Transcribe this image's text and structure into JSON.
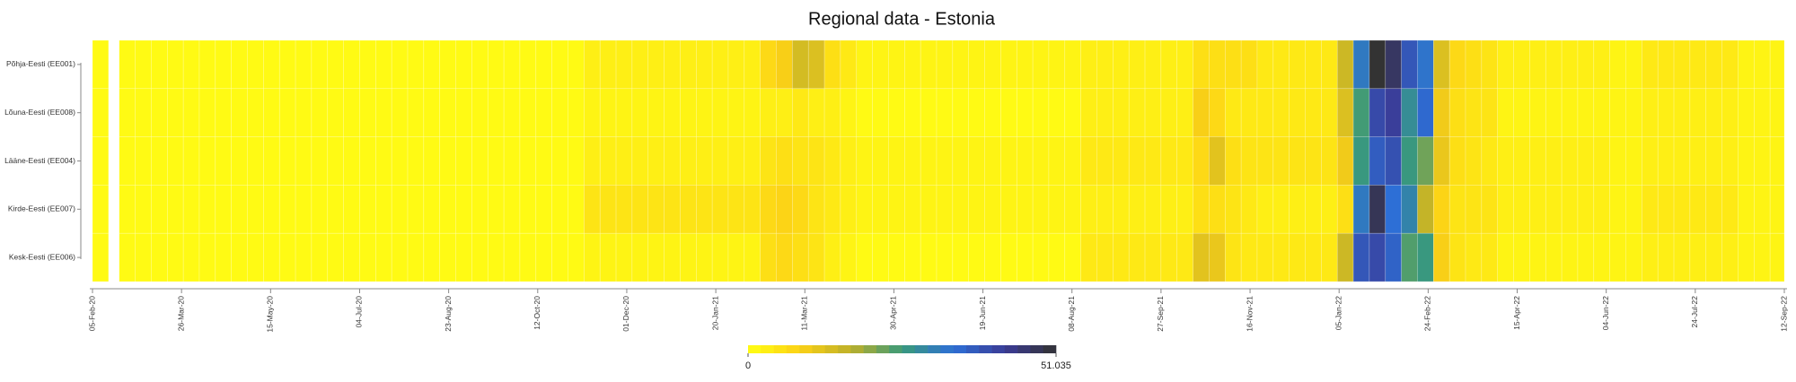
{
  "chart_data": {
    "type": "heatmap",
    "title": "Regional data - Estonia",
    "x": [
      "2020-02-05",
      "2020-02-20",
      "2020-02-29",
      "2020-03-09",
      "2020-03-18",
      "2020-03-27",
      "2020-04-05",
      "2020-04-14",
      "2020-04-23",
      "2020-05-02",
      "2020-05-11",
      "2020-05-20",
      "2020-05-29",
      "2020-06-07",
      "2020-06-16",
      "2020-06-25",
      "2020-07-04",
      "2020-07-13",
      "2020-07-22",
      "2020-07-31",
      "2020-08-09",
      "2020-08-18",
      "2020-08-27",
      "2020-09-05",
      "2020-09-14",
      "2020-09-23",
      "2020-10-02",
      "2020-10-11",
      "2020-10-20",
      "2020-10-29",
      "2020-11-07",
      "2020-11-16",
      "2020-11-25",
      "2020-12-04",
      "2020-12-13",
      "2020-12-22",
      "2020-12-31",
      "2021-01-09",
      "2021-01-18",
      "2021-01-27",
      "2021-02-05",
      "2021-02-14",
      "2021-02-23",
      "2021-03-04",
      "2021-03-13",
      "2021-03-22",
      "2021-03-31",
      "2021-04-09",
      "2021-04-18",
      "2021-04-27",
      "2021-05-06",
      "2021-05-15",
      "2021-05-24",
      "2021-06-02",
      "2021-06-11",
      "2021-06-20",
      "2021-06-29",
      "2021-07-08",
      "2021-07-17",
      "2021-07-26",
      "2021-08-04",
      "2021-08-13",
      "2021-08-22",
      "2021-08-31",
      "2021-09-09",
      "2021-09-18",
      "2021-09-27",
      "2021-10-06",
      "2021-10-15",
      "2021-10-24",
      "2021-11-02",
      "2021-11-11",
      "2021-11-20",
      "2021-11-29",
      "2021-12-08",
      "2021-12-17",
      "2021-12-26",
      "2022-01-04",
      "2022-01-13",
      "2022-01-22",
      "2022-01-31",
      "2022-02-09",
      "2022-02-18",
      "2022-02-27",
      "2022-03-08",
      "2022-03-17",
      "2022-03-26",
      "2022-04-04",
      "2022-04-13",
      "2022-04-22",
      "2022-05-01",
      "2022-05-10",
      "2022-05-19",
      "2022-05-28",
      "2022-06-06",
      "2022-06-15",
      "2022-06-24",
      "2022-07-03",
      "2022-07-12",
      "2022-07-21",
      "2022-07-30",
      "2022-08-08",
      "2022-08-17",
      "2022-08-26",
      "2022-09-04"
    ],
    "series": [
      {
        "name": "Põhja-Eesti (EE001)",
        "values": [
          1,
          1,
          1,
          1,
          1,
          1,
          1,
          1,
          1,
          1,
          1,
          1,
          1,
          1,
          1,
          1,
          1,
          1,
          1,
          1,
          1,
          1,
          1,
          1,
          1,
          1,
          1,
          1,
          1,
          1,
          3,
          3,
          3,
          3,
          3,
          3,
          3,
          3,
          3,
          3,
          3,
          7,
          9,
          14,
          13,
          6,
          4,
          2,
          2,
          2,
          2,
          2,
          2,
          2,
          2,
          2,
          2,
          2,
          2,
          2,
          2,
          3,
          3,
          3,
          3,
          3,
          3,
          3,
          6,
          6,
          6,
          6,
          4,
          4,
          4,
          4,
          4,
          15,
          32,
          51.035,
          47,
          38,
          33,
          13,
          7,
          6,
          5,
          3,
          3,
          3,
          3,
          3,
          3,
          3,
          2,
          2,
          4,
          4,
          4,
          4,
          4,
          4,
          2,
          2,
          2
        ]
      },
      {
        "name": "Lõuna-Eesti (EE008)",
        "values": [
          1,
          1,
          1,
          1,
          1,
          1,
          1,
          1,
          1,
          1,
          1,
          1,
          1,
          1,
          1,
          1,
          1,
          1,
          1,
          1,
          1,
          1,
          1,
          1,
          1,
          1,
          1,
          1,
          1,
          1,
          2,
          2,
          2,
          2,
          2,
          2,
          2,
          2,
          2,
          2,
          2,
          3,
          3,
          4,
          3,
          3,
          2,
          1,
          1,
          1,
          1,
          1,
          1,
          1,
          1,
          1,
          1,
          1,
          1,
          1,
          1,
          3,
          3,
          3,
          3,
          3,
          3,
          3,
          9,
          7,
          4,
          4,
          4,
          4,
          4,
          4,
          4,
          13,
          25,
          40,
          42,
          28,
          35,
          10,
          6,
          5,
          5,
          2,
          2,
          2,
          2,
          2,
          2,
          2,
          2,
          2,
          3,
          3,
          3,
          3,
          3,
          3,
          2,
          2,
          2
        ]
      },
      {
        "name": "Lääne-Eesti (EE004)",
        "values": [
          1,
          1,
          1,
          1,
          1,
          1,
          1,
          1,
          1,
          1,
          1,
          1,
          1,
          1,
          1,
          1,
          1,
          1,
          1,
          1,
          1,
          1,
          1,
          1,
          1,
          1,
          1,
          1,
          1,
          1,
          3,
          3,
          3,
          3,
          3,
          3,
          3,
          3,
          3,
          3,
          3,
          5,
          6,
          5,
          5,
          4,
          3,
          2,
          2,
          2,
          2,
          2,
          2,
          2,
          2,
          2,
          2,
          2,
          2,
          2,
          2,
          4,
          4,
          4,
          4,
          4,
          4,
          4,
          7,
          12,
          6,
          5,
          5,
          5,
          5,
          5,
          5,
          10,
          26,
          37,
          39,
          26,
          22,
          11,
          6,
          5,
          4,
          3,
          3,
          3,
          3,
          3,
          3,
          3,
          2,
          2,
          3,
          3,
          3,
          3,
          3,
          3,
          2,
          2,
          2
        ]
      },
      {
        "name": "Kirde-Eesti (EE007)",
        "values": [
          1,
          1,
          1,
          1,
          1,
          1,
          1,
          1,
          1,
          1,
          1,
          1,
          1,
          1,
          1,
          1,
          1,
          1,
          1,
          1,
          1,
          1,
          1,
          1,
          1,
          1,
          1,
          1,
          1,
          1,
          5,
          5,
          5,
          5,
          5,
          5,
          5,
          5,
          5,
          5,
          5,
          7,
          8,
          7,
          5,
          4,
          3,
          2,
          2,
          2,
          2,
          2,
          2,
          2,
          2,
          2,
          2,
          2,
          2,
          2,
          2,
          3,
          3,
          3,
          3,
          3,
          3,
          3,
          6,
          6,
          5,
          4,
          3,
          3,
          3,
          3,
          3,
          6,
          32,
          48,
          34,
          30,
          16,
          8,
          5,
          5,
          5,
          3,
          3,
          3,
          3,
          3,
          3,
          3,
          2,
          2,
          4,
          4,
          4,
          4,
          4,
          4,
          2,
          2,
          2
        ]
      },
      {
        "name": "Kesk-Eesti (EE006)",
        "values": [
          1,
          1,
          1,
          1,
          1,
          1,
          1,
          1,
          1,
          1,
          1,
          1,
          1,
          1,
          1,
          1,
          1,
          1,
          1,
          1,
          1,
          1,
          1,
          1,
          1,
          1,
          1,
          1,
          1,
          1,
          2,
          2,
          2,
          2,
          2,
          2,
          2,
          2,
          2,
          2,
          2,
          6,
          7,
          6,
          5,
          3,
          2,
          1,
          1,
          1,
          1,
          1,
          1,
          1,
          1,
          1,
          1,
          1,
          1,
          1,
          1,
          4,
          4,
          4,
          4,
          4,
          4,
          4,
          12,
          11,
          5,
          4,
          4,
          4,
          4,
          4,
          4,
          15,
          38,
          40,
          36,
          24,
          26,
          9,
          5,
          4,
          4,
          2,
          2,
          2,
          2,
          2,
          2,
          2,
          2,
          2,
          3,
          3,
          3,
          3,
          3,
          3,
          2,
          2,
          2
        ]
      }
    ],
    "xlim": [
      "2020-02-05",
      "2022-09-12"
    ],
    "xticks": [
      {
        "value": "2020-02-05",
        "label": "05-Feb-20"
      },
      {
        "value": "2020-03-26",
        "label": "26-Mar-20"
      },
      {
        "value": "2020-05-15",
        "label": "15-May-20"
      },
      {
        "value": "2020-07-04",
        "label": "04-Jul-20"
      },
      {
        "value": "2020-08-23",
        "label": "23-Aug-20"
      },
      {
        "value": "2020-10-12",
        "label": "12-Oct-20"
      },
      {
        "value": "2020-12-01",
        "label": "01-Dec-20"
      },
      {
        "value": "2021-01-20",
        "label": "20-Jan-21"
      },
      {
        "value": "2021-03-11",
        "label": "11-Mar-21"
      },
      {
        "value": "2021-04-30",
        "label": "30-Apr-21"
      },
      {
        "value": "2021-06-19",
        "label": "19-Jun-21"
      },
      {
        "value": "2021-08-08",
        "label": "08-Aug-21"
      },
      {
        "value": "2021-09-27",
        "label": "27-Sep-21"
      },
      {
        "value": "2021-11-16",
        "label": "16-Nov-21"
      },
      {
        "value": "2022-01-05",
        "label": "05-Jan-22"
      },
      {
        "value": "2022-02-24",
        "label": "24-Feb-22"
      },
      {
        "value": "2022-04-15",
        "label": "15-Apr-22"
      },
      {
        "value": "2022-06-04",
        "label": "04-Jun-22"
      },
      {
        "value": "2022-07-24",
        "label": "24-Jul-22"
      },
      {
        "value": "2022-09-12",
        "label": "12-Sep-22"
      }
    ],
    "colorbar": {
      "lim": [
        0,
        51.035
      ],
      "ticks": [
        0,
        51.035
      ],
      "colors": [
        "#ffff14",
        "#fcd116",
        "#bdb02a",
        "#3a9a7a",
        "#2d6fd6",
        "#3b3b96",
        "#333333"
      ]
    }
  }
}
